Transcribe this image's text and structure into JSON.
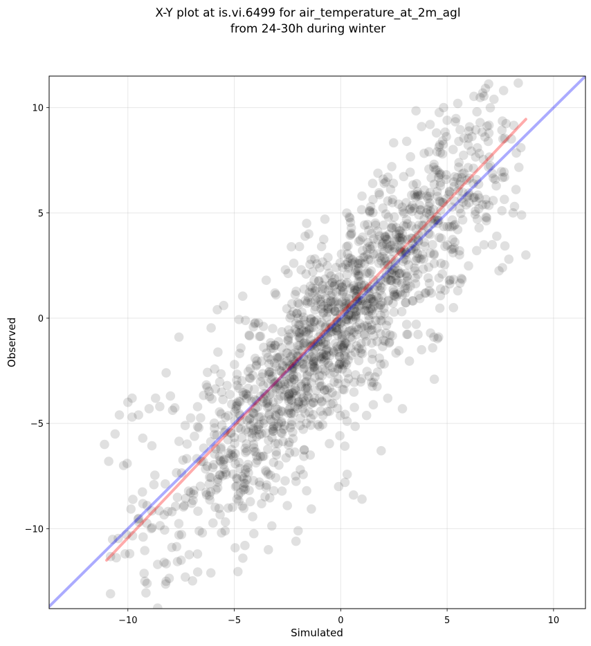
{
  "chart_data": {
    "type": "scatter",
    "title_line1": "X-Y plot at is.vi.6499 for air_temperature_at_2m_agl",
    "title_line2": "from 24-30h during winter",
    "xlabel": "Simulated",
    "ylabel": "Observed",
    "xlim": [
      -13.7,
      11.5
    ],
    "ylim": [
      -13.8,
      11.5
    ],
    "xticks": [
      -10,
      -5,
      0,
      5,
      10
    ],
    "yticks": [
      -10,
      -5,
      0,
      5,
      10
    ],
    "xtick_labels": [
      "−10",
      "−5",
      "0",
      "5",
      "10"
    ],
    "ytick_labels": [
      "−10",
      "−5",
      "0",
      "5",
      "10"
    ],
    "grid": true,
    "point_color": "#000000",
    "point_alpha": 0.12,
    "lines": [
      {
        "x": [
          -13.7,
          11.5
        ],
        "y": [
          -13.7,
          11.5
        ],
        "color": "#0000ff",
        "alpha": 0.33
      },
      {
        "x": [
          -11.0,
          8.7
        ],
        "y": [
          -11.5,
          9.45
        ],
        "color": "#ff0000",
        "alpha": 0.33
      }
    ],
    "cluster_spec": {
      "count": 1500,
      "x_mean": 0.0,
      "x_sd": 4.1,
      "slope": 1.06,
      "intercept": -0.3,
      "residual_sd": 2.2,
      "x_range": [
        -11,
        8.5
      ]
    },
    "points": [
      [
        -9.2,
        -12.5
      ],
      [
        -9.1,
        -12.6
      ],
      [
        -8.2,
        -12.5
      ],
      [
        -7.5,
        -11.5
      ],
      [
        -7.3,
        -12.3
      ],
      [
        -6.1,
        -12.1
      ],
      [
        -4.6,
        -11.4
      ],
      [
        -3.4,
        -11.0
      ],
      [
        -2.1,
        -10.6
      ],
      [
        -2.0,
        -10.1
      ],
      [
        -11.1,
        -6.0
      ],
      [
        -10.9,
        -6.8
      ],
      [
        -10.6,
        -5.5
      ],
      [
        -10.4,
        -4.6
      ],
      [
        -10.2,
        -7.0
      ],
      [
        -10.0,
        -4.0
      ],
      [
        -9.8,
        -3.8
      ],
      [
        -9.5,
        -4.6
      ],
      [
        -9.3,
        -5.7
      ],
      [
        -9.0,
        -4.3
      ],
      [
        -8.7,
        -3.8
      ],
      [
        -8.5,
        -4.2
      ],
      [
        -8.2,
        -2.6
      ],
      [
        -8.0,
        -3.7
      ],
      [
        -7.6,
        -0.9
      ],
      [
        -9.8,
        -4.7
      ],
      [
        -9.1,
        -8.9
      ],
      [
        -8.9,
        -10.0
      ],
      [
        -8.6,
        -11.7
      ],
      [
        -8.3,
        -11.6
      ],
      [
        -5.5,
        0.6
      ],
      [
        -5.8,
        0.4
      ],
      [
        -3.5,
        1.8
      ],
      [
        -2.6,
        2.3
      ],
      [
        -1.6,
        4.5
      ],
      [
        -1.5,
        4.0
      ],
      [
        -0.9,
        3.4
      ],
      [
        0.4,
        4.8
      ],
      [
        1.0,
        5.8
      ],
      [
        1.5,
        6.4
      ],
      [
        2.0,
        6.6
      ],
      [
        2.4,
        7.2
      ],
      [
        3.1,
        8.4
      ],
      [
        3.8,
        9.1
      ],
      [
        4.2,
        9.2
      ],
      [
        4.5,
        8.8
      ],
      [
        5.0,
        9.4
      ],
      [
        5.5,
        10.2
      ],
      [
        6.4,
        9.8
      ],
      [
        7.2,
        10.4
      ],
      [
        7.7,
        6.7
      ],
      [
        8.1,
        5.0
      ],
      [
        8.5,
        4.9
      ],
      [
        8.7,
        3.0
      ],
      [
        7.9,
        2.8
      ],
      [
        7.6,
        2.4
      ],
      [
        5.5,
        1.3
      ],
      [
        5.3,
        0.5
      ],
      [
        4.6,
        -0.9
      ],
      [
        4.4,
        -2.9
      ],
      [
        3.8,
        -1.5
      ],
      [
        3.1,
        -0.3
      ],
      [
        2.9,
        -4.3
      ],
      [
        1.9,
        -6.3
      ],
      [
        1.0,
        -8.6
      ],
      [
        0.6,
        -8.4
      ],
      [
        0.2,
        -7.8
      ],
      [
        -0.1,
        -8.0
      ],
      [
        -1.6,
        -8.2
      ],
      [
        -1.9,
        -7.2
      ],
      [
        -2.4,
        -6.4
      ],
      [
        -4.5,
        -10.8
      ],
      [
        -5.6,
        -10.2
      ],
      [
        -6.5,
        -10.2
      ],
      [
        -7.6,
        -10.3
      ]
    ]
  }
}
